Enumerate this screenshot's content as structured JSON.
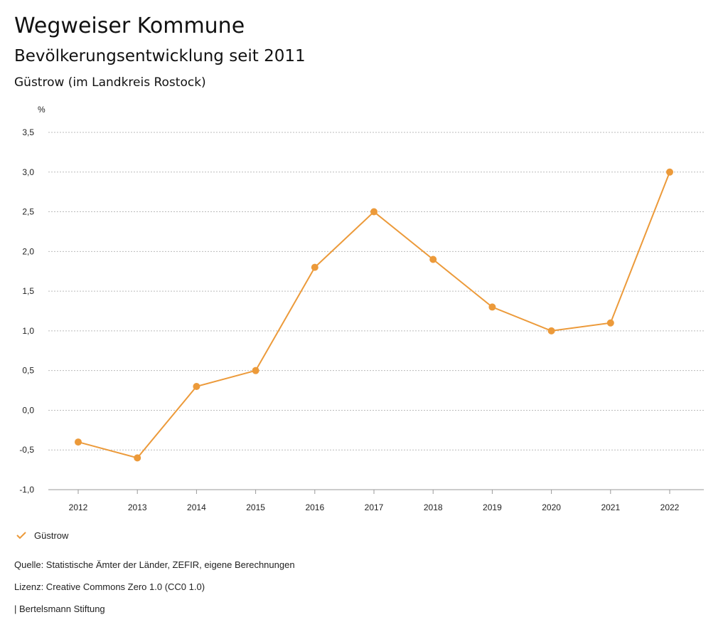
{
  "header": {
    "title": "Wegweiser Kommune",
    "subtitle": "Bevölkerungsentwicklung seit 2011",
    "region": "Güstrow (im Landkreis Rostock)"
  },
  "chart_data": {
    "type": "line",
    "ylabel": "%",
    "ylim": [
      -1.0,
      3.5
    ],
    "yticks": [
      "-1,0",
      "-0,5",
      "0,0",
      "0,5",
      "1,0",
      "1,5",
      "2,0",
      "2,5",
      "3,0",
      "3,5"
    ],
    "ytick_values": [
      -1.0,
      -0.5,
      0.0,
      0.5,
      1.0,
      1.5,
      2.0,
      2.5,
      3.0,
      3.5
    ],
    "categories": [
      "2012",
      "2013",
      "2014",
      "2015",
      "2016",
      "2017",
      "2018",
      "2019",
      "2020",
      "2021",
      "2022"
    ],
    "series": [
      {
        "name": "Güstrow",
        "values": [
          -0.4,
          -0.6,
          0.3,
          0.5,
          1.8,
          2.5,
          1.9,
          1.3,
          1.0,
          1.1,
          3.0
        ],
        "color": "#ec9a3a"
      }
    ],
    "grid": true,
    "legend_position": "bottom-left"
  },
  "legend": {
    "label": "Güstrow",
    "icon": "check-icon"
  },
  "footer": {
    "source": "Quelle: Statistische Ämter der Länder, ZEFIR, eigene Berechnungen",
    "license": "Lizenz: Creative Commons Zero 1.0 (CC0 1.0)",
    "publisher": "| Bertelsmann Stiftung"
  }
}
